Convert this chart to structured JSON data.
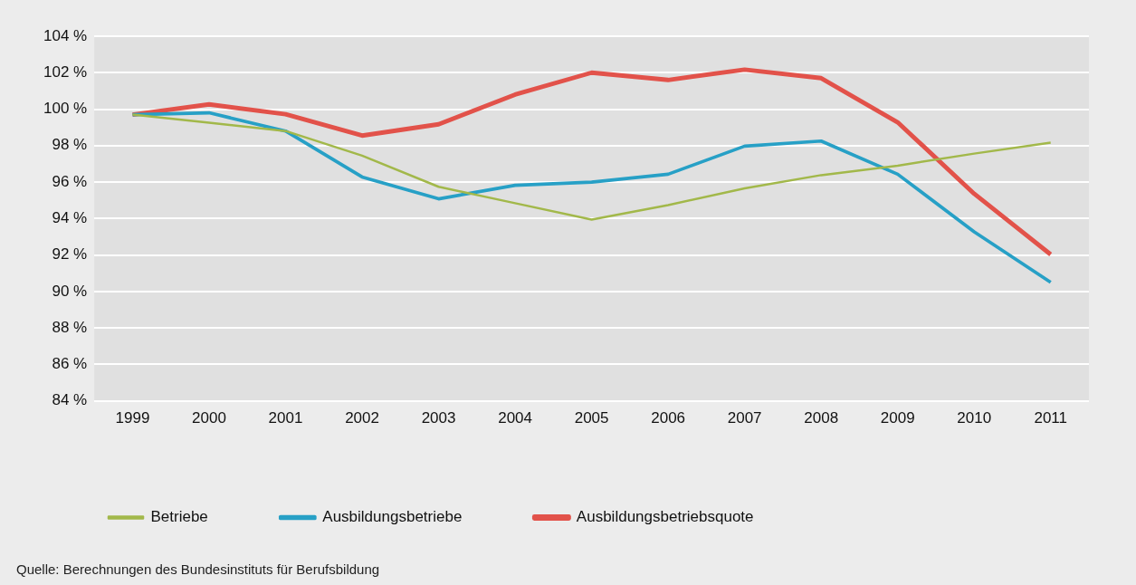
{
  "chart_data": {
    "type": "line",
    "categories": [
      "1999",
      "2000",
      "2001",
      "2002",
      "2003",
      "2004",
      "2005",
      "2006",
      "2007",
      "2008",
      "2009",
      "2010",
      "2011"
    ],
    "series": [
      {
        "name": "Betriebe",
        "color": "#a2b84a",
        "values": [
          99.7,
          99.26,
          98.8,
          97.45,
          95.74,
          94.84,
          93.94,
          94.74,
          95.65,
          96.38,
          96.9,
          97.56,
          98.16
        ]
      },
      {
        "name": "Ausbildungsbetriebe",
        "color": "#27a0c6",
        "values": [
          99.7,
          99.8,
          98.8,
          96.28,
          95.08,
          95.82,
          96.0,
          96.43,
          97.97,
          98.25,
          96.43,
          93.27,
          90.5
        ]
      },
      {
        "name": "Ausbildungsbetriebsquote",
        "color": "#e2524a",
        "values": [
          99.7,
          100.26,
          99.72,
          98.55,
          99.17,
          100.8,
          102.0,
          101.6,
          102.17,
          101.7,
          99.28,
          95.36,
          92.03
        ]
      }
    ],
    "ylim": [
      84,
      104
    ],
    "yticks": [
      {
        "value": 84,
        "label": "84 %"
      },
      {
        "value": 86,
        "label": "86 %"
      },
      {
        "value": 88,
        "label": "88 %"
      },
      {
        "value": 90,
        "label": "90 %"
      },
      {
        "value": 92,
        "label": "92 %"
      },
      {
        "value": 94,
        "label": "94 %"
      },
      {
        "value": 96,
        "label": "96 %"
      },
      {
        "value": 98,
        "label": "98 %"
      },
      {
        "value": 100,
        "label": "100 %"
      },
      {
        "value": 102,
        "label": "102 %"
      },
      {
        "value": 104,
        "label": "104 %"
      }
    ],
    "grid": "y",
    "legend": "bottom left",
    "marker": "none",
    "line_style": "solid",
    "annotations": [
      "Quelle: Berechnungen des Bundesinstituts für Berufsbildung"
    ]
  }
}
